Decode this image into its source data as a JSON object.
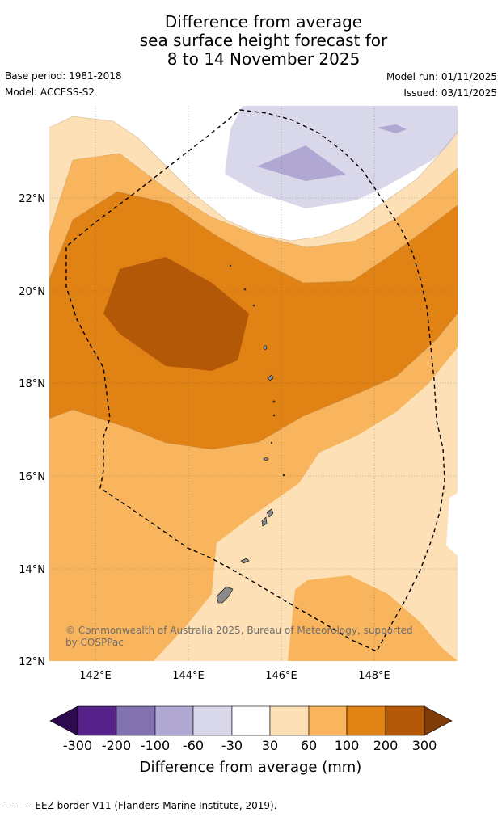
{
  "title": {
    "line1": "Difference from average",
    "line2": "sea surface height forecast for",
    "line3": "8 to 14 November 2025"
  },
  "meta": {
    "base_period": "Base period: 1981-2018",
    "model": "Model: ACCESS-S2",
    "model_run": "Model run: 01/11/2025",
    "issued": "Issued: 03/11/2025"
  },
  "map": {
    "latitude_labels": [
      "22°N",
      "20°N",
      "18°N",
      "16°N",
      "14°N",
      "12°N"
    ],
    "longitude_labels": [
      "142°E",
      "144°E",
      "146°E",
      "148°E"
    ],
    "copyright_line1": "© Commonwealth of Australia 2025, Bureau of Meteorology, supported",
    "copyright_line2": "by COSPPac"
  },
  "colorbar": {
    "title": "Difference from average (mm)",
    "labels": [
      "-300",
      "-200",
      "-100",
      "-60",
      "-30",
      "30",
      "60",
      "100",
      "200",
      "300"
    ],
    "colors": [
      "#2d0a4e",
      "#56228a",
      "#8273b0",
      "#b0a8d2",
      "#d8d8ea",
      "#ffffff",
      "#fde0b5",
      "#f9b45e",
      "#e08214",
      "#b35806",
      "#7f3b08"
    ]
  },
  "footer": {
    "eez_note": "--  --  -- EEZ border V11 (Flanders Marine Institute, 2019)."
  }
}
